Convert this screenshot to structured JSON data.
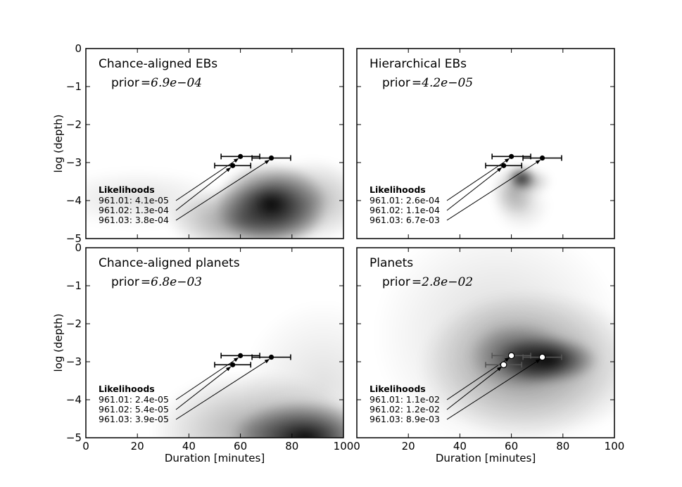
{
  "figure": {
    "xlabel": "Duration [minutes]",
    "ylabel": "log (depth)",
    "x_ticks": [
      "0",
      "20",
      "40",
      "60",
      "80",
      "100"
    ],
    "y_ticks": [
      "0",
      "−1",
      "−2",
      "−3",
      "−4",
      "−5"
    ],
    "prior_label": "prior",
    "likelihoods_label": "Likelihoods"
  },
  "chart_data": [
    {
      "type": "heatmap",
      "title": "Chance-aligned EBs",
      "prior": "=6.9e−04",
      "xlim": [
        0,
        100
      ],
      "ylim": [
        -5,
        0
      ],
      "xlabel": "",
      "ylabel": "log (depth)",
      "density_blobs": [
        {
          "x": 72,
          "y": -4.1,
          "sx": 10,
          "sy": 0.5,
          "w": 1.0
        },
        {
          "x": 62,
          "y": -4.5,
          "sx": 14,
          "sy": 0.4,
          "w": 0.5
        },
        {
          "x": 88,
          "y": -4.0,
          "sx": 10,
          "sy": 0.5,
          "w": 0.3
        },
        {
          "x": 20,
          "y": -3.95,
          "sx": 16,
          "sy": 0.35,
          "w": 0.12
        }
      ],
      "candidates": [
        {
          "name": "961.01",
          "likelihood": "4.1e-05",
          "duration": 60,
          "duration_err": 7.5,
          "log_depth": -2.84
        },
        {
          "name": "961.02",
          "likelihood": "1.3e-04",
          "duration": 57,
          "duration_err": 7,
          "log_depth": -3.08
        },
        {
          "name": "961.03",
          "likelihood": "3.8e-04",
          "duration": 72,
          "duration_err": 7.5,
          "log_depth": -2.88
        }
      ]
    },
    {
      "type": "heatmap",
      "title": "Hierarchical EBs",
      "prior": "=4.2e−05",
      "xlim": [
        0,
        100
      ],
      "ylim": [
        -5,
        0
      ],
      "xlabel": "",
      "ylabel": "",
      "density_blobs": [
        {
          "x": 64,
          "y": -3.42,
          "sx": 2.5,
          "sy": 0.14,
          "w": 1.0
        },
        {
          "x": 61,
          "y": -3.75,
          "sx": 4,
          "sy": 0.3,
          "w": 0.3
        },
        {
          "x": 64,
          "y": -4.15,
          "sx": 5,
          "sy": 0.3,
          "w": 0.15
        },
        {
          "x": 69,
          "y": -3.5,
          "sx": 3,
          "sy": 0.15,
          "w": 0.25
        }
      ],
      "candidates": [
        {
          "name": "961.01",
          "likelihood": "2.6e-04",
          "duration": 60,
          "duration_err": 7.5,
          "log_depth": -2.84
        },
        {
          "name": "961.02",
          "likelihood": "1.1e-04",
          "duration": 57,
          "duration_err": 7,
          "log_depth": -3.08
        },
        {
          "name": "961.03",
          "likelihood": "6.7e-03",
          "duration": 72,
          "duration_err": 7.5,
          "log_depth": -2.88
        }
      ]
    },
    {
      "type": "heatmap",
      "title": "Chance-aligned planets",
      "prior": "=6.8e−03",
      "xlim": [
        0,
        100
      ],
      "ylim": [
        -5,
        0
      ],
      "xlabel": "Duration [minutes]",
      "ylabel": "log (depth)",
      "density_blobs": [
        {
          "x": 85,
          "y": -5.0,
          "sx": 13,
          "sy": 0.45,
          "w": 1.0
        },
        {
          "x": 65,
          "y": -4.8,
          "sx": 18,
          "sy": 0.7,
          "w": 0.35
        },
        {
          "x": 92,
          "y": -3.6,
          "sx": 14,
          "sy": 1.0,
          "w": 0.12
        }
      ],
      "candidates": [
        {
          "name": "961.01",
          "likelihood": "2.4e-05",
          "duration": 60,
          "duration_err": 7.5,
          "log_depth": -2.84
        },
        {
          "name": "961.02",
          "likelihood": "5.4e-05",
          "duration": 57,
          "duration_err": 7,
          "log_depth": -3.08
        },
        {
          "name": "961.03",
          "likelihood": "3.9e-05",
          "duration": 72,
          "duration_err": 7.5,
          "log_depth": -2.88
        }
      ]
    },
    {
      "type": "heatmap",
      "title": "Planets",
      "prior": "=2.8e−02",
      "xlim": [
        0,
        100
      ],
      "ylim": [
        -5,
        0
      ],
      "xlabel": "Duration [minutes]",
      "ylabel": "",
      "density_blobs": [
        {
          "x": 74,
          "y": -2.95,
          "sx": 9,
          "sy": 0.28,
          "w": 1.0
        },
        {
          "x": 63,
          "y": -2.85,
          "sx": 9,
          "sy": 0.4,
          "w": 0.55
        },
        {
          "x": 68,
          "y": -3.1,
          "sx": 20,
          "sy": 0.9,
          "w": 0.4
        },
        {
          "x": 55,
          "y": -2.3,
          "sx": 22,
          "sy": 1.4,
          "w": 0.15
        }
      ],
      "open_markers": true,
      "candidates": [
        {
          "name": "961.01",
          "likelihood": "1.1e-02",
          "duration": 60,
          "duration_err": 7.5,
          "log_depth": -2.84
        },
        {
          "name": "961.02",
          "likelihood": "1.2e-02",
          "duration": 57,
          "duration_err": 7,
          "log_depth": -3.08
        },
        {
          "name": "961.03",
          "likelihood": "8.9e-03",
          "duration": 72,
          "duration_err": 7.5,
          "log_depth": -2.88
        }
      ]
    }
  ]
}
